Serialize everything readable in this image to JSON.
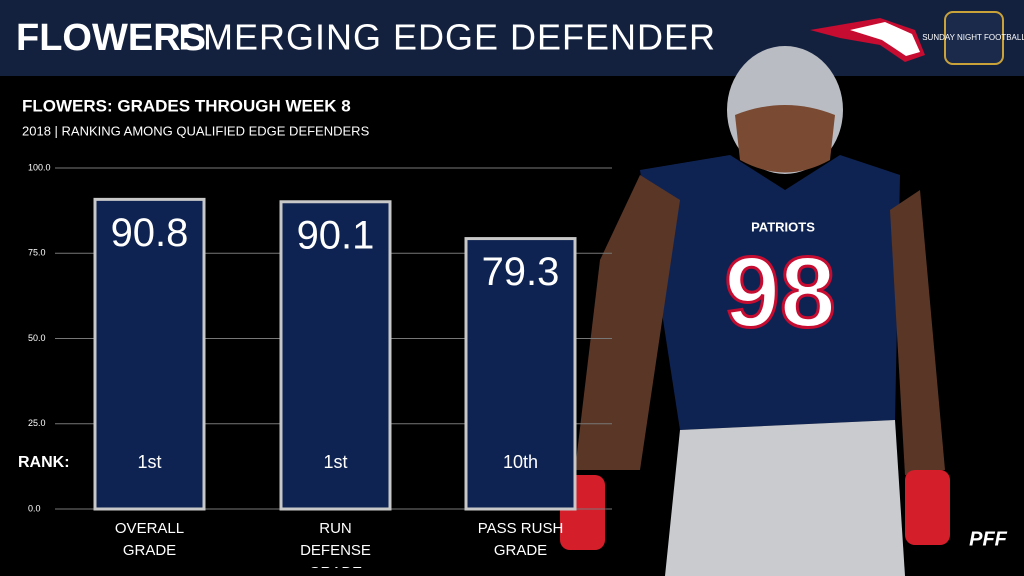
{
  "chart_data": {
    "type": "bar",
    "title_name": "FLOWERS",
    "title": "EMERGING EDGE DEFENDER",
    "subtitle": "FLOWERS: GRADES THROUGH WEEK 8",
    "caption": "2018 | RANKING AMONG QUALIFIED EDGE DEFENDERS",
    "categories": [
      "OVERALL GRADE",
      "RUN DEFENSE GRADE",
      "PASS RUSH GRADE"
    ],
    "values": [
      90.8,
      90.1,
      79.3
    ],
    "rank_label": "RANK:",
    "ranks": [
      "1st",
      "1st",
      "10th"
    ],
    "color": "#0e2352",
    "ylim": [
      0,
      100
    ],
    "yticks": [
      {
        "value": 0,
        "label": "0.0"
      },
      {
        "value": 25,
        "label": "25.0"
      },
      {
        "value": 50,
        "label": "50.0"
      },
      {
        "value": 75,
        "label": "75.0"
      },
      {
        "value": 100,
        "label": "100.0"
      }
    ],
    "grid": true
  },
  "photo": {
    "jersey_name": "PATRIOTS",
    "jersey_number": "98"
  },
  "logos": {
    "broadcast": "SUNDAY NIGHT FOOTBALL",
    "source": "PFF"
  }
}
